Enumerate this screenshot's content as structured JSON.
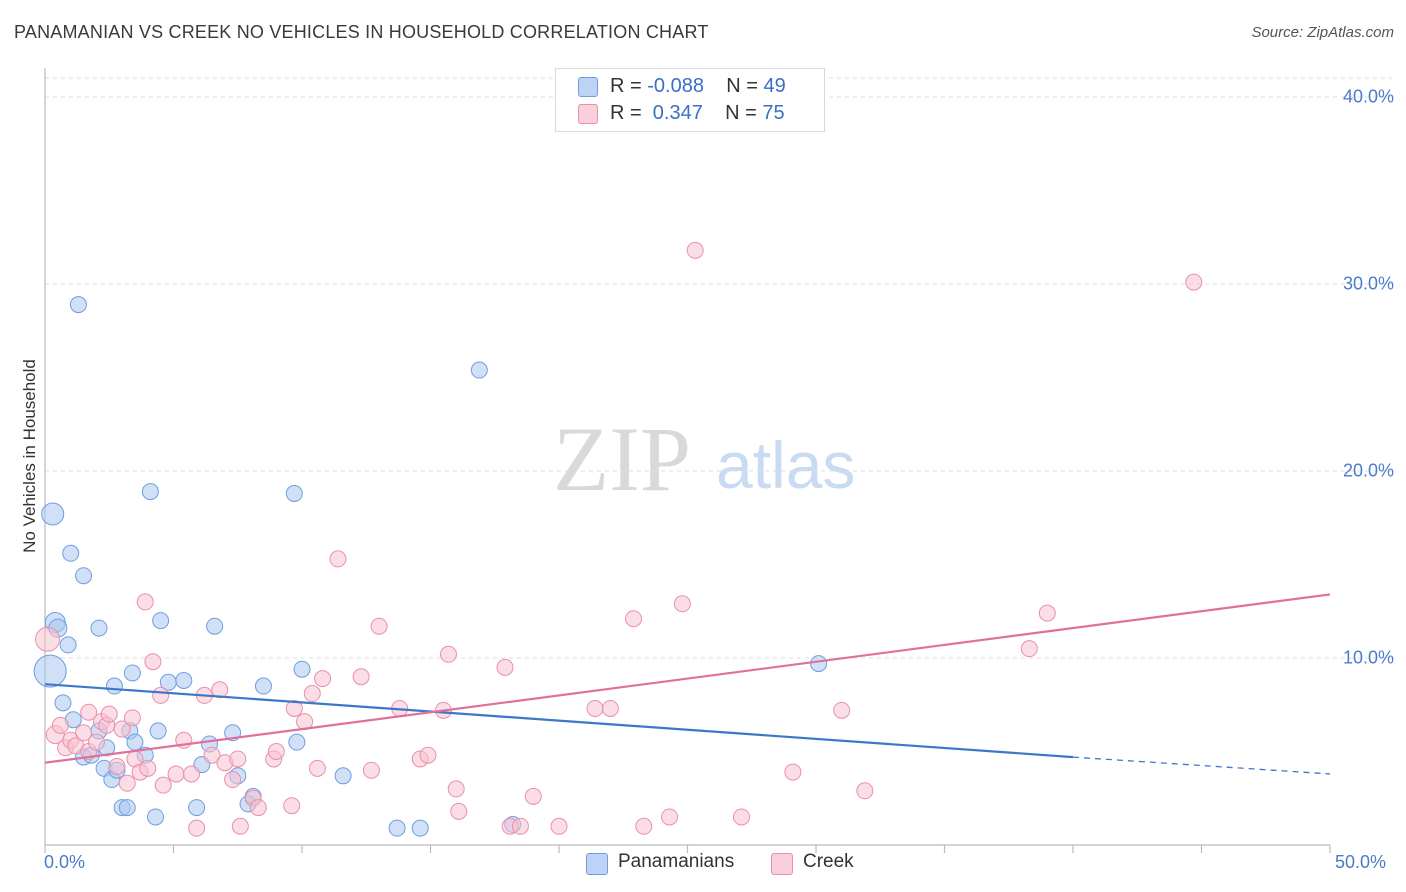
{
  "title": "PANAMANIAN VS CREEK NO VEHICLES IN HOUSEHOLD CORRELATION CHART",
  "source": "Source: ZipAtlas.com",
  "watermark": {
    "zip": "ZIP",
    "atlas": "atlas"
  },
  "legend": {
    "rows": [
      {
        "r_label": "R = ",
        "r_value": "-0.088",
        "n_label": "N = ",
        "n_value": "49",
        "color": "#a9c6f0"
      },
      {
        "r_label": "R = ",
        "r_value": " 0.347",
        "n_label": "N = ",
        "n_value": "75",
        "color": "#f5b8c9"
      }
    ]
  },
  "bottom_legend": [
    {
      "label": "Panamanians",
      "color": "#a9c6f0"
    },
    {
      "label": "Creek",
      "color": "#f5b8c9"
    }
  ],
  "colors": {
    "panamanian_fill": "#a9c6f0",
    "panamanian_stroke": "#6f9ee0",
    "panamanian_line": "#3b78c9",
    "creek_fill": "#f7c1d0",
    "creek_stroke": "#ea8fab",
    "creek_line": "#e0709a",
    "grid": "#dcdcdc",
    "axis": "#bbbbbb",
    "tick_text": "#4a7cc9"
  },
  "chart_data": {
    "type": "scatter",
    "title": "PANAMANIAN VS CREEK NO VEHICLES IN HOUSEHOLD CORRELATION CHART",
    "xlabel": "",
    "ylabel": "No Vehicles in Household",
    "xlim": [
      0,
      50
    ],
    "ylim": [
      0,
      40
    ],
    "x_tick_labels": [
      "0.0%",
      "50.0%"
    ],
    "y_ticks": [
      10,
      20,
      30,
      40
    ],
    "y_tick_labels": [
      "10.0%",
      "20.0%",
      "30.0%",
      "40.0%"
    ],
    "grid": "horizontal dashed",
    "legend_position": "top-center",
    "series": [
      {
        "name": "Panamanians",
        "r": -0.088,
        "n": 49,
        "points": [
          [
            0.2,
            9.3,
            16
          ],
          [
            0.3,
            17.7,
            11
          ],
          [
            0.4,
            11.9,
            10
          ],
          [
            0.5,
            11.6,
            9
          ],
          [
            0.9,
            10.7,
            8
          ],
          [
            1.0,
            15.6,
            8
          ],
          [
            1.3,
            28.9,
            8
          ],
          [
            0.7,
            7.6,
            8
          ],
          [
            1.1,
            6.7,
            8
          ],
          [
            1.5,
            14.4,
            8
          ],
          [
            1.5,
            4.7,
            8
          ],
          [
            1.8,
            4.8,
            8
          ],
          [
            2.1,
            6.1,
            8
          ],
          [
            2.1,
            11.6,
            8
          ],
          [
            2.3,
            4.1,
            8
          ],
          [
            2.4,
            5.2,
            8
          ],
          [
            2.6,
            3.5,
            8
          ],
          [
            2.7,
            8.5,
            8
          ],
          [
            2.8,
            4.0,
            8
          ],
          [
            3.0,
            2.0,
            8
          ],
          [
            3.2,
            2.0,
            8
          ],
          [
            3.3,
            6.1,
            8
          ],
          [
            3.4,
            9.2,
            8
          ],
          [
            3.5,
            5.5,
            8
          ],
          [
            3.9,
            4.8,
            8
          ],
          [
            4.1,
            18.9,
            8
          ],
          [
            4.3,
            1.5,
            8
          ],
          [
            4.4,
            6.1,
            8
          ],
          [
            4.5,
            12.0,
            8
          ],
          [
            4.8,
            8.7,
            8
          ],
          [
            5.4,
            8.8,
            8
          ],
          [
            5.9,
            2.0,
            8
          ],
          [
            6.1,
            4.3,
            8
          ],
          [
            6.4,
            5.4,
            8
          ],
          [
            6.6,
            11.7,
            8
          ],
          [
            7.3,
            6.0,
            8
          ],
          [
            7.5,
            3.7,
            8
          ],
          [
            7.9,
            2.2,
            8
          ],
          [
            8.1,
            2.6,
            8
          ],
          [
            8.5,
            8.5,
            8
          ],
          [
            9.7,
            18.8,
            8
          ],
          [
            9.8,
            5.5,
            8
          ],
          [
            10.0,
            9.4,
            8
          ],
          [
            11.6,
            3.7,
            8
          ],
          [
            13.7,
            0.9,
            8
          ],
          [
            14.6,
            0.9,
            8
          ],
          [
            16.9,
            25.4,
            8
          ],
          [
            18.2,
            1.1,
            8
          ],
          [
            30.1,
            9.7,
            8
          ]
        ],
        "trend": {
          "x0": 0,
          "y0": 8.6,
          "x1": 40,
          "y1": 4.7,
          "dash_to_x": 50,
          "dash_to_y": 3.8
        }
      },
      {
        "name": "Creek",
        "r": 0.347,
        "n": 75,
        "points": [
          [
            0.1,
            11.0,
            12
          ],
          [
            0.4,
            5.9,
            9
          ],
          [
            0.6,
            6.4,
            8
          ],
          [
            0.8,
            5.2,
            8
          ],
          [
            1.0,
            5.6,
            8
          ],
          [
            1.2,
            5.3,
            8
          ],
          [
            1.5,
            6.0,
            8
          ],
          [
            1.7,
            5.0,
            8
          ],
          [
            1.7,
            7.1,
            8
          ],
          [
            2.0,
            5.5,
            8
          ],
          [
            2.2,
            6.6,
            8
          ],
          [
            2.4,
            6.4,
            8
          ],
          [
            2.5,
            7.0,
            8
          ],
          [
            2.8,
            4.2,
            8
          ],
          [
            3.0,
            6.2,
            8
          ],
          [
            3.2,
            3.3,
            8
          ],
          [
            3.4,
            6.8,
            8
          ],
          [
            3.5,
            4.6,
            8
          ],
          [
            3.7,
            3.9,
            8
          ],
          [
            3.9,
            13.0,
            8
          ],
          [
            4.0,
            4.1,
            8
          ],
          [
            4.2,
            9.8,
            8
          ],
          [
            4.5,
            8.0,
            8
          ],
          [
            4.6,
            3.2,
            8
          ],
          [
            5.1,
            3.8,
            8
          ],
          [
            5.4,
            5.6,
            8
          ],
          [
            5.7,
            3.8,
            8
          ],
          [
            5.9,
            0.9,
            8
          ],
          [
            6.2,
            8.0,
            8
          ],
          [
            6.5,
            4.8,
            8
          ],
          [
            6.8,
            8.3,
            8
          ],
          [
            7.0,
            4.4,
            8
          ],
          [
            7.3,
            3.5,
            8
          ],
          [
            7.5,
            4.6,
            8
          ],
          [
            7.6,
            1.0,
            8
          ],
          [
            8.1,
            2.5,
            8
          ],
          [
            8.3,
            2.0,
            8
          ],
          [
            8.9,
            4.6,
            8
          ],
          [
            9.0,
            5.0,
            8
          ],
          [
            9.6,
            2.1,
            8
          ],
          [
            9.7,
            7.3,
            8
          ],
          [
            10.1,
            6.6,
            8
          ],
          [
            10.4,
            8.1,
            8
          ],
          [
            10.6,
            4.1,
            8
          ],
          [
            10.8,
            8.9,
            8
          ],
          [
            11.4,
            15.3,
            8
          ],
          [
            12.3,
            9.0,
            8
          ],
          [
            12.7,
            4.0,
            8
          ],
          [
            13.0,
            11.7,
            8
          ],
          [
            13.8,
            7.3,
            8
          ],
          [
            14.6,
            4.6,
            8
          ],
          [
            14.9,
            4.8,
            8
          ],
          [
            15.5,
            7.2,
            8
          ],
          [
            15.7,
            10.2,
            8
          ],
          [
            16.0,
            3.0,
            8
          ],
          [
            16.1,
            1.8,
            8
          ],
          [
            17.9,
            9.5,
            8
          ],
          [
            18.1,
            1.0,
            8
          ],
          [
            19.0,
            2.6,
            8
          ],
          [
            20.0,
            1.0,
            8
          ],
          [
            21.4,
            7.3,
            8
          ],
          [
            22.0,
            7.3,
            8
          ],
          [
            22.9,
            12.1,
            8
          ],
          [
            23.3,
            1.0,
            8
          ],
          [
            24.3,
            1.5,
            8
          ],
          [
            24.8,
            12.9,
            8
          ],
          [
            25.3,
            31.8,
            8
          ],
          [
            27.1,
            1.5,
            8
          ],
          [
            29.1,
            3.9,
            8
          ],
          [
            31.0,
            7.2,
            8
          ],
          [
            31.9,
            2.9,
            8
          ],
          [
            38.3,
            10.5,
            8
          ],
          [
            39.0,
            12.4,
            8
          ],
          [
            44.7,
            30.1,
            8
          ],
          [
            18.5,
            1.0,
            8
          ]
        ],
        "trend": {
          "x0": 0,
          "y0": 4.4,
          "x1": 50,
          "y1": 13.4
        }
      }
    ]
  }
}
